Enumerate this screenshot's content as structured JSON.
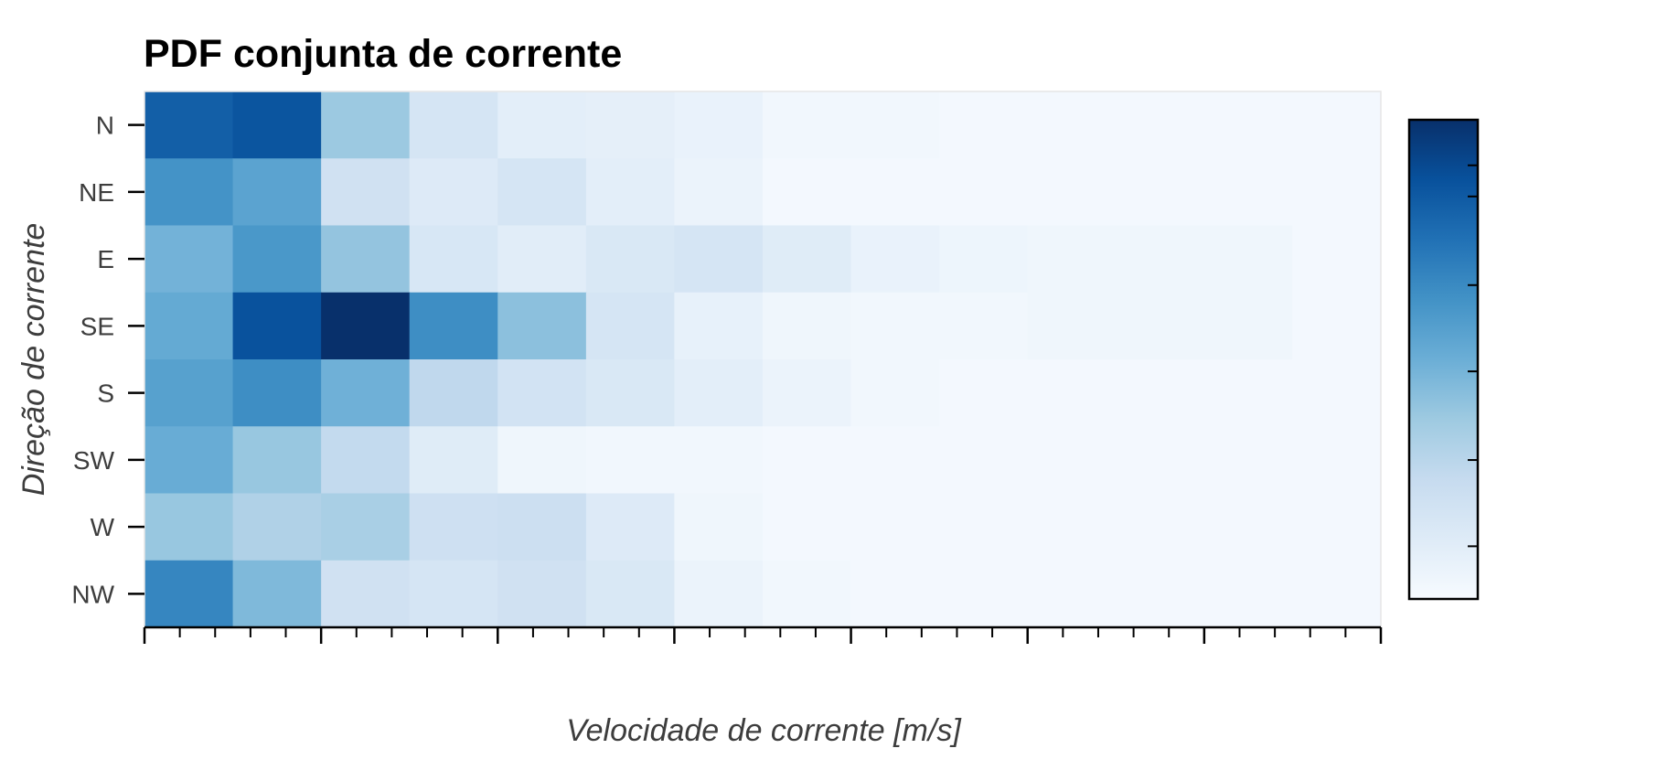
{
  "chart_data": {
    "type": "heatmap",
    "title": "PDF conjunta de corrente",
    "xlabel": "Velocidade de corrente [m/s]",
    "ylabel": "Direção de corrente",
    "rows": [
      "N",
      "NE",
      "E",
      "SE",
      "S",
      "SW",
      "W",
      "NW"
    ],
    "n_columns": 14,
    "x_tick_labels_visible": false,
    "colorbar_tick_labels_visible": false,
    "colormap": "Blues",
    "values": [
      [
        0.82,
        0.86,
        0.38,
        0.17,
        0.1,
        0.09,
        0.07,
        0.03,
        0.03,
        0.02,
        0.02,
        0.02,
        0.02,
        0.02
      ],
      [
        0.62,
        0.55,
        0.2,
        0.13,
        0.17,
        0.1,
        0.06,
        0.02,
        0.02,
        0.02,
        0.02,
        0.02,
        0.02,
        0.02
      ],
      [
        0.48,
        0.6,
        0.4,
        0.16,
        0.11,
        0.15,
        0.17,
        0.12,
        0.07,
        0.05,
        0.04,
        0.04,
        0.04,
        0.02
      ],
      [
        0.52,
        0.87,
        1.0,
        0.64,
        0.42,
        0.17,
        0.08,
        0.04,
        0.03,
        0.03,
        0.04,
        0.04,
        0.04,
        0.02
      ],
      [
        0.56,
        0.64,
        0.49,
        0.27,
        0.19,
        0.15,
        0.1,
        0.06,
        0.03,
        0.02,
        0.02,
        0.02,
        0.02,
        0.02
      ],
      [
        0.51,
        0.39,
        0.26,
        0.12,
        0.04,
        0.03,
        0.03,
        0.02,
        0.02,
        0.02,
        0.02,
        0.02,
        0.02,
        0.02
      ],
      [
        0.39,
        0.32,
        0.34,
        0.21,
        0.22,
        0.13,
        0.04,
        0.02,
        0.02,
        0.02,
        0.02,
        0.02,
        0.02,
        0.02
      ],
      [
        0.67,
        0.45,
        0.2,
        0.17,
        0.2,
        0.15,
        0.06,
        0.03,
        0.02,
        0.02,
        0.02,
        0.02,
        0.02,
        0.02
      ]
    ]
  }
}
